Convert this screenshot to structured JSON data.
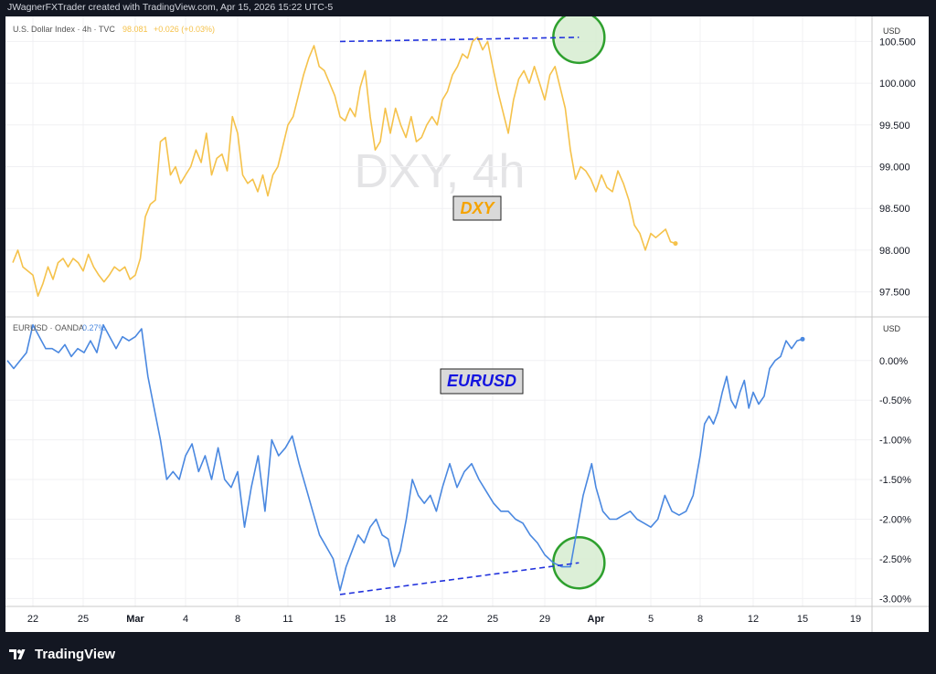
{
  "header": {
    "attribution": "JWagnerFXTrader created with TradingView.com, Apr 15, 2026 15:22 UTC-5"
  },
  "footer": {
    "brand": "TradingView"
  },
  "colors": {
    "dxy_line": "#f5c24b",
    "eurusd_line": "#4a88e0",
    "circle_fill": "#d6ecd0",
    "circle_stroke": "#2ea02e",
    "divergence_line": "#2233dd",
    "background": "#131722"
  },
  "top_panel": {
    "legend_name": "U.S. Dollar Index · 4h · TVC",
    "legend_value": "98.081",
    "legend_change": "+0.026 (+0.03%)",
    "watermark": "DXY, 4h",
    "label": "DXY",
    "currency": "USD"
  },
  "bottom_panel": {
    "legend_name": "EURUSD · OANDA",
    "legend_value": "0.27%",
    "label": "EURUSD",
    "currency": "USD"
  },
  "chart_data": [
    {
      "type": "line",
      "series": [
        {
          "values": [
            97.85,
            98.0,
            97.8,
            97.75,
            97.7,
            97.45,
            97.6,
            97.8,
            97.65,
            97.85,
            97.9,
            97.8,
            97.9,
            97.85,
            97.75,
            97.95,
            97.8,
            97.7,
            97.62,
            97.7,
            97.8,
            97.75,
            97.8,
            97.65,
            97.7,
            97.9,
            98.4,
            98.55,
            98.6,
            99.3,
            99.35,
            98.9,
            99.0,
            98.8,
            98.9,
            99.0,
            99.2,
            99.05,
            99.4,
            98.9,
            99.1,
            99.15,
            98.95,
            99.6,
            99.4,
            98.9,
            98.8,
            98.85,
            98.7,
            98.9,
            98.65,
            98.9,
            99.0,
            99.25,
            99.5,
            99.6,
            99.85,
            100.1,
            100.3,
            100.45,
            100.2,
            100.15,
            100.0,
            99.85,
            99.6,
            99.55,
            99.7,
            99.6,
            99.95,
            100.15,
            99.6,
            99.2,
            99.3,
            99.7,
            99.4,
            99.7,
            99.5,
            99.35,
            99.6,
            99.3,
            99.35,
            99.5,
            99.6,
            99.5,
            99.8,
            99.9,
            100.1,
            100.2,
            100.35,
            100.3,
            100.5,
            100.55,
            100.4,
            100.5,
            100.2,
            99.9,
            99.65,
            99.4,
            99.8,
            100.05,
            100.15,
            100.0,
            100.2,
            100.0,
            99.8,
            100.1,
            100.2,
            99.95,
            99.7,
            99.2,
            98.85,
            99.0,
            98.95,
            98.85,
            98.7,
            98.9,
            98.75,
            98.7,
            98.95,
            98.8,
            98.6,
            98.3,
            98.2,
            98.0,
            98.2,
            98.15,
            98.2,
            98.25,
            98.1,
            98.08
          ],
          "anchors": {
            "Feb 22": 4,
            "Feb 25": 14,
            "Mar 1": 24,
            "Mar 4": 34,
            "Mar 8": 44,
            "Mar 11": 54,
            "Mar 15": 64,
            "Mar 18": 74,
            "Mar 22": 84,
            "Mar 25": 94,
            "Mar 29": 104,
            "Apr 1": 114,
            "Apr 5": 124,
            "Apr 8": 134,
            "Apr 12": 144,
            "Apr 15": 154
          }
        }
      ],
      "x_tick_labels": [
        "22",
        "25",
        "Mar",
        "4",
        "8",
        "11",
        "15",
        "18",
        "22",
        "25",
        "29",
        "Apr",
        "5",
        "8",
        "12",
        "15",
        "19"
      ],
      "y_tick_labels": [
        "100.500",
        "100.000",
        "99.500",
        "99.000",
        "98.500",
        "98.000",
        "97.500"
      ],
      "y_ticks": [
        100.5,
        100.0,
        99.5,
        99.0,
        98.5,
        98.0,
        97.5
      ],
      "ylim": [
        97.2,
        100.8
      ],
      "current_value": 98.081,
      "annotations": {
        "divergence_line": {
          "from": [
            "Mar 15",
            100.5
          ],
          "to": [
            "Mar 31",
            100.55
          ]
        },
        "circle": {
          "at": [
            "Mar 31",
            100.55
          ]
        }
      }
    },
    {
      "type": "line",
      "series": [
        {
          "values": [
            0.0,
            -0.1,
            0.0,
            0.1,
            0.45,
            0.3,
            0.15,
            0.15,
            0.1,
            0.2,
            0.05,
            0.15,
            0.1,
            0.25,
            0.1,
            0.45,
            0.3,
            0.15,
            0.3,
            0.25,
            0.3,
            0.4,
            -0.2,
            -0.6,
            -1.0,
            -1.5,
            -1.4,
            -1.5,
            -1.2,
            -1.05,
            -1.4,
            -1.2,
            -1.5,
            -1.1,
            -1.5,
            -1.6,
            -1.4,
            -2.1,
            -1.6,
            -1.2,
            -1.9,
            -1.0,
            -1.2,
            -1.1,
            -0.95,
            -1.3,
            -1.6,
            -1.9,
            -2.2,
            -2.35,
            -2.5,
            -2.9,
            -2.6,
            -2.4,
            -2.2,
            -2.3,
            -2.1,
            -2.0,
            -2.2,
            -2.25,
            -2.6,
            -2.4,
            -2.0,
            -1.5,
            -1.7,
            -1.8,
            -1.7,
            -1.9,
            -1.6,
            -1.3,
            -1.6,
            -1.4,
            -1.3,
            -1.5,
            -1.65,
            -1.8,
            -1.9,
            -1.9,
            -2.0,
            -2.05,
            -2.2,
            -2.3,
            -2.45,
            -2.55,
            -2.6,
            -2.6,
            -2.0,
            -1.7,
            -1.5,
            -1.3,
            -1.6,
            -1.9,
            -2.0,
            -2.0,
            -1.95,
            -1.9,
            -2.0,
            -2.05,
            -2.1,
            -2.0,
            -1.7,
            -1.9,
            -1.95,
            -1.9,
            -1.7,
            -1.2,
            -0.8,
            -0.7,
            -0.8,
            -0.65,
            -0.4,
            -0.2,
            -0.5,
            -0.6,
            -0.4,
            -0.25,
            -0.6,
            -0.4,
            -0.55,
            -0.45,
            -0.1,
            0.0,
            0.05,
            0.25,
            0.15,
            0.25,
            0.27
          ],
          "anchors": {
            "Feb 22": 4,
            "Mar 1": 20,
            "Mar 4": 28,
            "Mar 8": 36,
            "Mar 15": 51,
            "Mar 22": 68,
            "Mar 29": 82,
            "Mar 31": 86,
            "Apr 1": 90,
            "Apr 5": 98,
            "Apr 8": 105,
            "Apr 12": 117,
            "Apr 15": 126
          }
        }
      ],
      "x_tick_labels": [
        "22",
        "25",
        "Mar",
        "4",
        "8",
        "11",
        "15",
        "18",
        "22",
        "25",
        "29",
        "Apr",
        "5",
        "8",
        "12",
        "15",
        "19"
      ],
      "y_tick_labels": [
        "0.00%",
        "-0.50%",
        "-1.00%",
        "-1.50%",
        "-2.00%",
        "-2.50%",
        "-3.00%"
      ],
      "y_ticks": [
        0.0,
        -0.5,
        -1.0,
        -1.5,
        -2.0,
        -2.5,
        -3.0
      ],
      "ylim": [
        -3.1,
        0.55
      ],
      "current_value": 0.27,
      "annotations": {
        "divergence_line": {
          "from": [
            "Mar 15",
            -2.95
          ],
          "to": [
            "Mar 31",
            -2.55
          ]
        },
        "circle": {
          "at": [
            "Mar 31",
            -2.55
          ]
        }
      }
    }
  ]
}
